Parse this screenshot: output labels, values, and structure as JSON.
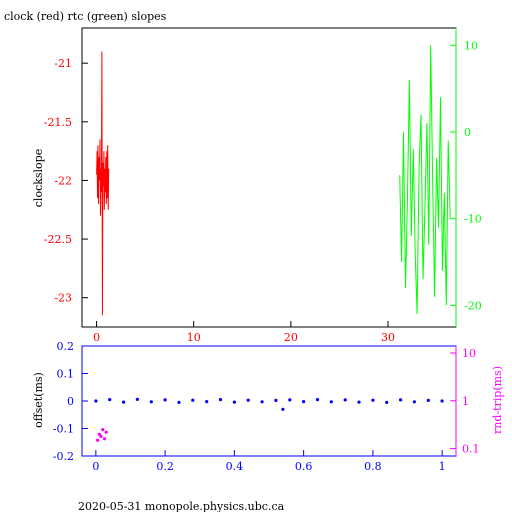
{
  "page": {
    "title": "clock (red) rtc (green) slopes",
    "footer": "2020-05-31 monopole.physics.ubc.ca"
  },
  "colors": {
    "red": "#ff0000",
    "green": "#00ff00",
    "blue": "#0000ff",
    "magenta": "#ff00ff",
    "black": "#000000"
  },
  "chart_data": [
    {
      "type": "line",
      "ylabel": "clockslope",
      "xlim": [
        -1.5,
        37
      ],
      "ylim_left": [
        -23.25,
        -20.7
      ],
      "ylim_right": [
        -22.5,
        12
      ],
      "x_ticks": [
        0,
        10,
        20,
        30
      ],
      "y_left_ticks": [
        -21,
        -21.5,
        -22,
        -22.5,
        -23
      ],
      "y_left_tick_labels": [
        "-21",
        "-21.5",
        "-22",
        "-22.5",
        "-23"
      ],
      "y_right_ticks": [
        10,
        0,
        -10,
        -20
      ],
      "y_right_tick_labels": [
        "10",
        "0",
        "-10",
        "-20"
      ],
      "series": [
        {
          "color": "red",
          "axis": "left",
          "x": [
            0.0,
            0.05,
            0.1,
            0.15,
            0.2,
            0.25,
            0.3,
            0.35,
            0.4,
            0.45,
            0.5,
            0.55,
            0.6,
            0.65,
            0.7,
            0.75,
            0.8,
            0.85,
            0.9,
            0.95,
            1.0,
            1.05,
            1.1,
            1.15,
            1.2,
            1.25
          ],
          "y": [
            -21.95,
            -21.75,
            -22.15,
            -21.7,
            -22.2,
            -21.8,
            -22.0,
            -21.65,
            -22.3,
            -21.9,
            -22.1,
            -20.9,
            -23.15,
            -21.85,
            -22.05,
            -21.75,
            -22.25,
            -21.9,
            -22.1,
            -21.8,
            -22.2,
            -21.75,
            -22.15,
            -21.7,
            -22.25,
            -21.9
          ]
        },
        {
          "color": "green",
          "axis": "right",
          "x": [
            31.2,
            31.4,
            31.6,
            31.8,
            32.0,
            32.2,
            32.4,
            32.6,
            32.8,
            33.0,
            33.2,
            33.4,
            33.6,
            33.8,
            34.0,
            34.2,
            34.4,
            34.6,
            34.8,
            35.0,
            35.2,
            35.4,
            35.6,
            35.8,
            36.0,
            36.2,
            36.4
          ],
          "y": [
            -5,
            -15,
            0,
            -18,
            -8,
            6,
            -12,
            -2,
            -14,
            -21,
            -4,
            2,
            -17,
            -9,
            1,
            -13,
            10,
            -6,
            -19,
            -3,
            -11,
            4,
            -16,
            -7,
            -20,
            -1,
            -10
          ]
        }
      ]
    },
    {
      "type": "scatter",
      "ylabel_left": "offset(ms)",
      "ylabel_right": "rnd-trip(ms)",
      "xlim": [
        -0.04,
        1.04
      ],
      "ylim_left": [
        -0.2,
        0.2
      ],
      "x_ticks": [
        0,
        0.2,
        0.4,
        0.6,
        0.8,
        1
      ],
      "x_tick_labels": [
        "0",
        "0.2",
        "0.4",
        "0.6",
        "0.8",
        "1"
      ],
      "y_left_ticks": [
        0.2,
        0.1,
        0,
        -0.1,
        -0.2
      ],
      "y_left_tick_labels": [
        "0.2",
        "0.1",
        "0",
        "-0.1",
        "-0.2"
      ],
      "y_right_scale": "log",
      "y_right_ticks": [
        10,
        1,
        0.1
      ],
      "y_right_tick_labels": [
        "10",
        "1",
        "0.1"
      ],
      "series": [
        {
          "color": "blue",
          "axis": "left",
          "x": [
            0.0,
            0.04,
            0.08,
            0.12,
            0.16,
            0.2,
            0.24,
            0.28,
            0.32,
            0.36,
            0.4,
            0.44,
            0.48,
            0.52,
            0.54,
            0.56,
            0.6,
            0.64,
            0.68,
            0.72,
            0.76,
            0.8,
            0.84,
            0.88,
            0.92,
            0.96,
            1.0
          ],
          "y": [
            0.0,
            0.005,
            -0.004,
            0.006,
            -0.003,
            0.004,
            -0.005,
            0.003,
            -0.002,
            0.005,
            -0.004,
            0.003,
            -0.003,
            0.002,
            -0.03,
            0.004,
            -0.002,
            0.005,
            -0.003,
            0.004,
            -0.004,
            0.003,
            -0.005,
            0.004,
            -0.003,
            0.002,
            0.0
          ]
        },
        {
          "color": "magenta",
          "axis": "right",
          "x": [
            0.005,
            0.01,
            0.015,
            0.02,
            0.025,
            0.03
          ],
          "y": [
            0.15,
            0.2,
            0.18,
            0.25,
            0.16,
            0.22
          ]
        }
      ]
    }
  ]
}
